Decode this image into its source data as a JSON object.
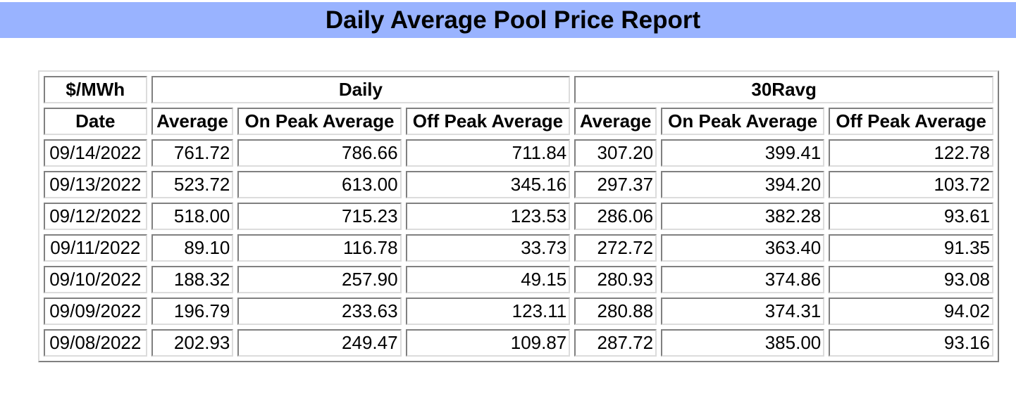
{
  "title": "Daily Average Pool Price Report",
  "table": {
    "unit_header": "$/MWh",
    "group_daily": "Daily",
    "group_30ravg": "30Ravg",
    "columns": {
      "date": "Date",
      "average": "Average",
      "on_peak": "On Peak Average",
      "off_peak": "Off Peak Average"
    },
    "rows": [
      {
        "date": "09/14/2022",
        "d_avg": "761.72",
        "d_on": "786.66",
        "d_off": "711.84",
        "r_avg": "307.20",
        "r_on": "399.41",
        "r_off": "122.78"
      },
      {
        "date": "09/13/2022",
        "d_avg": "523.72",
        "d_on": "613.00",
        "d_off": "345.16",
        "r_avg": "297.37",
        "r_on": "394.20",
        "r_off": "103.72"
      },
      {
        "date": "09/12/2022",
        "d_avg": "518.00",
        "d_on": "715.23",
        "d_off": "123.53",
        "r_avg": "286.06",
        "r_on": "382.28",
        "r_off": "93.61"
      },
      {
        "date": "09/11/2022",
        "d_avg": "89.10",
        "d_on": "116.78",
        "d_off": "33.73",
        "r_avg": "272.72",
        "r_on": "363.40",
        "r_off": "91.35"
      },
      {
        "date": "09/10/2022",
        "d_avg": "188.32",
        "d_on": "257.90",
        "d_off": "49.15",
        "r_avg": "280.93",
        "r_on": "374.86",
        "r_off": "93.08"
      },
      {
        "date": "09/09/2022",
        "d_avg": "196.79",
        "d_on": "233.63",
        "d_off": "123.11",
        "r_avg": "280.88",
        "r_on": "374.31",
        "r_off": "94.02"
      },
      {
        "date": "09/08/2022",
        "d_avg": "202.93",
        "d_on": "249.47",
        "d_off": "109.87",
        "r_avg": "287.72",
        "r_on": "385.00",
        "r_off": "93.16"
      }
    ]
  }
}
